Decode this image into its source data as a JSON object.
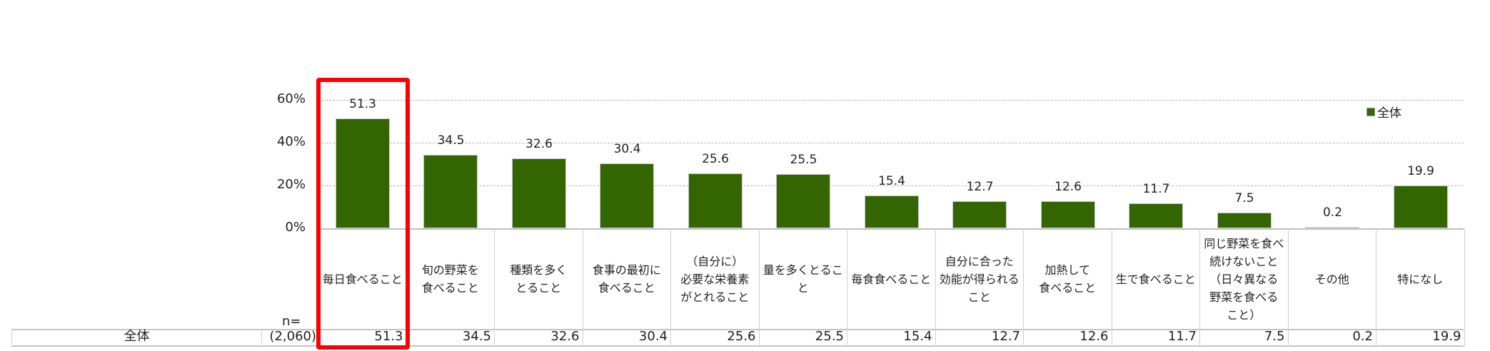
{
  "chart_data": {
    "type": "bar",
    "title": "",
    "xlabel": "",
    "ylabel": "",
    "ylim": [
      0,
      60
    ],
    "yticks": [
      "0%",
      "20%",
      "40%",
      "60%"
    ],
    "grid": true,
    "legend_position": "top-right",
    "categories": [
      "毎日食べること",
      "旬の野菜を\n食べること",
      "種類を多く\nとること",
      "食事の最初に\n食べること",
      "（自分に）\n必要な栄養素\nがとれること",
      "量を多くとること",
      "毎食食べること",
      "自分に合った\n効能が得られる\nこと",
      "加熱して\n食べること",
      "生で食べること",
      "同じ野菜を食べ\n続けないこと\n（日々異なる\n野菜を食べる\nこと）",
      "その他",
      "特になし"
    ],
    "series": [
      {
        "name": "全体",
        "color": "#336600",
        "values": [
          51.3,
          34.5,
          32.6,
          30.4,
          25.6,
          25.5,
          15.4,
          12.7,
          12.6,
          11.7,
          7.5,
          0.2,
          19.9
        ]
      }
    ],
    "value_labels": [
      "51.3",
      "34.5",
      "32.6",
      "30.4",
      "25.6",
      "25.5",
      "15.4",
      "12.7",
      "12.6",
      "11.7",
      "7.5",
      "0.2",
      "19.9"
    ],
    "highlighted_category_index": 0,
    "highlight_color": "#ff0000"
  },
  "legend": {
    "label": "全体"
  },
  "table": {
    "n_label": "n=",
    "row_label": "全体",
    "n_value": "(2,060)",
    "values": [
      "51.3",
      "34.5",
      "32.6",
      "30.4",
      "25.6",
      "25.5",
      "15.4",
      "12.7",
      "12.6",
      "11.7",
      "7.5",
      "0.2",
      "19.9"
    ]
  }
}
